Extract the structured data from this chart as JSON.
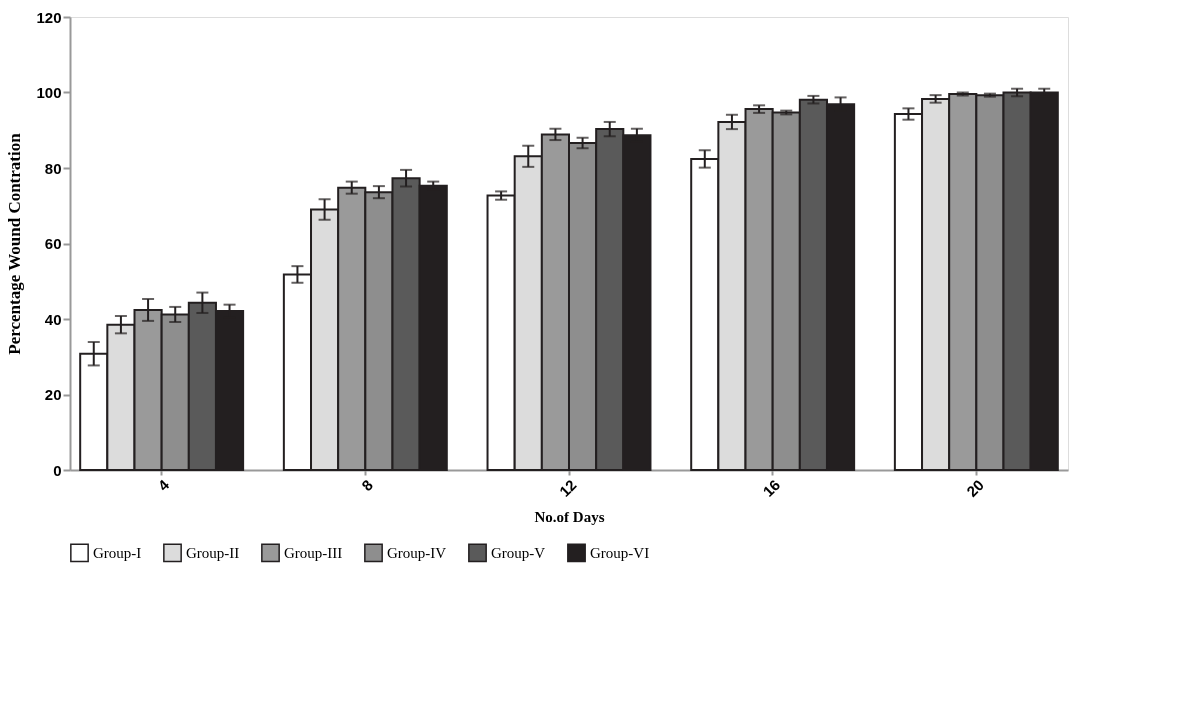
{
  "chart_data": {
    "type": "bar",
    "xlabel": "No.of Days",
    "ylabel": "Percentage Wound Contration",
    "categories": [
      "4",
      "8",
      "12",
      "16",
      "20"
    ],
    "series": [
      {
        "name": "Group-I",
        "color": "#ffffff",
        "values": [
          30.8,
          51.8,
          72.7,
          82.4,
          94.3
        ],
        "errors": [
          3.1,
          2.2,
          1.1,
          2.3,
          1.5
        ]
      },
      {
        "name": "Group-II",
        "color": "#dcdcdc",
        "values": [
          38.5,
          69.0,
          83.1,
          92.2,
          98.3
        ],
        "errors": [
          2.3,
          2.7,
          2.8,
          1.9,
          1.0
        ]
      },
      {
        "name": "Group-III",
        "color": "#9a9a9a",
        "values": [
          42.4,
          74.8,
          88.9,
          95.6,
          99.6
        ],
        "errors": [
          2.9,
          1.6,
          1.5,
          1.0,
          0.4
        ]
      },
      {
        "name": "Group-IV",
        "color": "#8e8e8e",
        "values": [
          41.2,
          73.6,
          86.6,
          94.7,
          99.3
        ],
        "errors": [
          2.0,
          1.6,
          1.4,
          0.5,
          0.4
        ]
      },
      {
        "name": "Group-V",
        "color": "#5a5a5a",
        "values": [
          44.3,
          77.3,
          90.3,
          98.1,
          100.0
        ],
        "errors": [
          2.7,
          2.2,
          1.9,
          1.0,
          1.0
        ]
      },
      {
        "name": "Group-VI",
        "color": "#231f20",
        "values": [
          42.1,
          75.3,
          88.7,
          96.9,
          100.0
        ],
        "errors": [
          1.7,
          1.1,
          1.7,
          1.8,
          1.0
        ]
      }
    ],
    "ylim": [
      0,
      120
    ],
    "yticks": [
      0,
      20,
      40,
      60,
      80,
      100,
      120
    ],
    "grid": false,
    "legend": "bottom"
  }
}
